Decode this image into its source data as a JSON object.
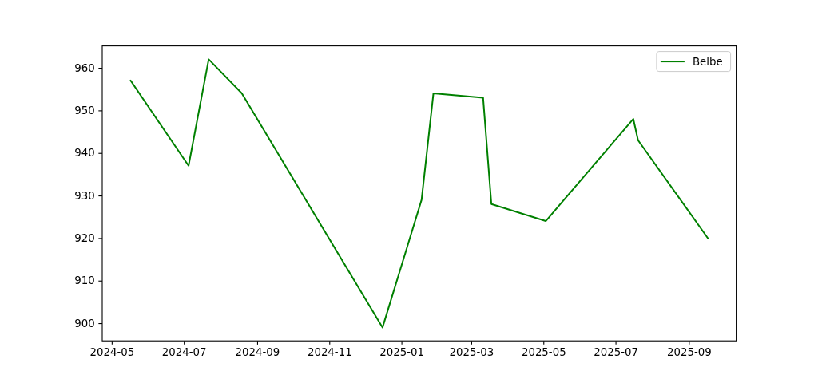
{
  "chart_data": {
    "type": "line",
    "x": [
      "2024-05-17",
      "2024-07-05",
      "2024-07-22",
      "2024-08-19",
      "2024-12-16",
      "2025-01-18",
      "2025-01-28",
      "2025-03-11",
      "2025-03-18",
      "2025-05-03",
      "2025-07-16",
      "2025-07-20",
      "2025-09-17"
    ],
    "series": [
      {
        "name": "Belbe",
        "color": "#008000",
        "values": [
          957,
          937,
          962,
          954,
          899,
          929,
          954,
          953,
          928,
          924,
          948,
          943,
          920
        ]
      }
    ],
    "xlim": [
      "2024-04-23",
      "2025-10-11"
    ],
    "ylim": [
      895.85,
      965.15
    ],
    "xticks": [
      "2024-05",
      "2024-07",
      "2024-09",
      "2024-11",
      "2025-01",
      "2025-03",
      "2025-05",
      "2025-07",
      "2025-09"
    ],
    "yticks": [
      900,
      910,
      920,
      930,
      940,
      950,
      960
    ],
    "legend": "top right"
  }
}
